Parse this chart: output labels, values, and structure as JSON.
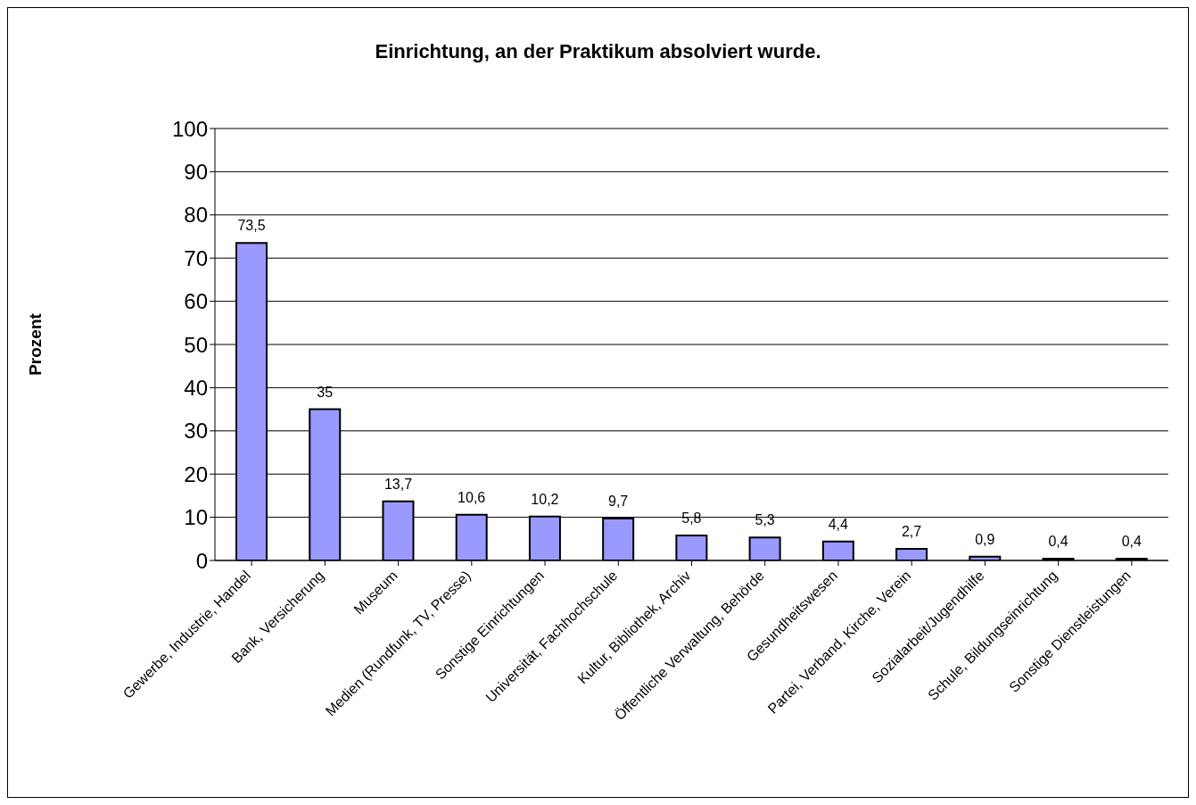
{
  "chart_data": {
    "type": "bar",
    "title": "Einrichtung, an der Praktikum absolviert wurde.",
    "ylabel": "Prozent",
    "categories": [
      "Gewerbe, Industrie, Handel",
      "Bank, Versicherung",
      "Museum",
      "Medien (Rundfunk, TV, Presse)",
      "Sonstige Einrichtungen",
      "Universität, Fachhochschule",
      "Kultur, Bibliothek, Archiv",
      "Öffentliche Verwaltung, Behörde",
      "Gesundheitswesen",
      "Partei, Verband, Kirche, Verein",
      "Sozialarbeit/Jugendhilfe",
      "Schule, Bildungseinrichtung",
      "Sonstige Dienstleistungen"
    ],
    "values": [
      73.5,
      35,
      13.7,
      10.6,
      10.2,
      9.7,
      5.8,
      5.3,
      4.4,
      2.7,
      0.9,
      0.4,
      0.4
    ],
    "value_labels": [
      "73,5",
      "35",
      "13,7",
      "10,6",
      "10,2",
      "9,7",
      "5,8",
      "5,3",
      "4,4",
      "2,7",
      "0,9",
      "0,4",
      "0,4"
    ],
    "color": "#9999ff",
    "ylim": [
      0,
      100
    ],
    "yticks": [
      0,
      10,
      20,
      30,
      40,
      50,
      60,
      70,
      80,
      90,
      100
    ],
    "grid": "y"
  }
}
